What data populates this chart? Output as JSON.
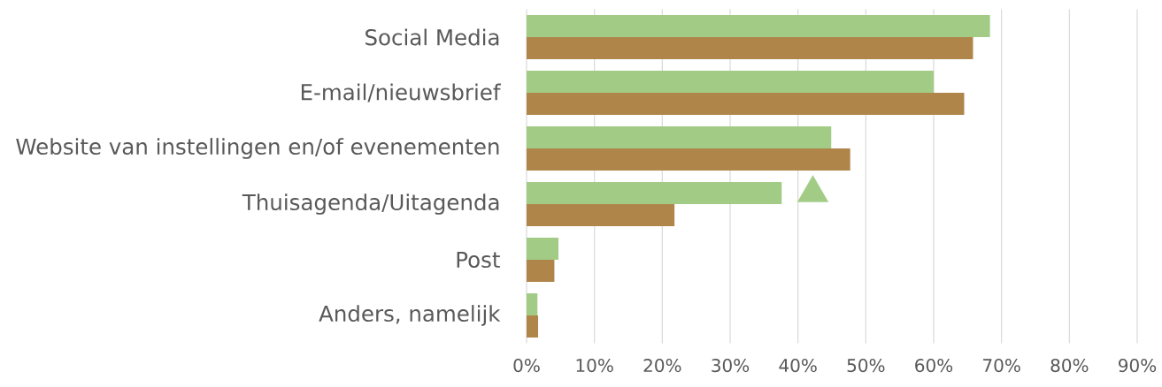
{
  "chart_data": {
    "type": "bar",
    "orientation": "horizontal",
    "categories": [
      "Social Media",
      "E-mail/nieuwsbrief",
      "Website van instellingen en/of evenementen",
      "Thuisagenda/Uitagenda",
      "Post",
      "Anders, namelijk"
    ],
    "series": [
      {
        "color": "#a2cc86",
        "values": [
          68.3,
          60.0,
          44.9,
          37.6,
          4.7,
          1.6
        ]
      },
      {
        "color": "#b0854a",
        "values": [
          65.8,
          64.5,
          47.7,
          21.8,
          4.1,
          1.7
        ]
      },
      {
        "type": "scatter",
        "color": "#a2cc86",
        "marker": "triangle",
        "values": [
          null,
          null,
          null,
          42.2,
          null,
          null
        ]
      }
    ],
    "xlim": [
      0,
      90
    ],
    "xticks": [
      {
        "value": 0,
        "label": "0%"
      },
      {
        "value": 10,
        "label": "10%"
      },
      {
        "value": 20,
        "label": "20%"
      },
      {
        "value": 30,
        "label": "30%"
      },
      {
        "value": 40,
        "label": "40%"
      },
      {
        "value": 50,
        "label": "50%"
      },
      {
        "value": 60,
        "label": "60%"
      },
      {
        "value": 70,
        "label": "70%"
      },
      {
        "value": 80,
        "label": "80%"
      },
      {
        "value": 90,
        "label": "90%"
      }
    ],
    "grid": "x"
  }
}
